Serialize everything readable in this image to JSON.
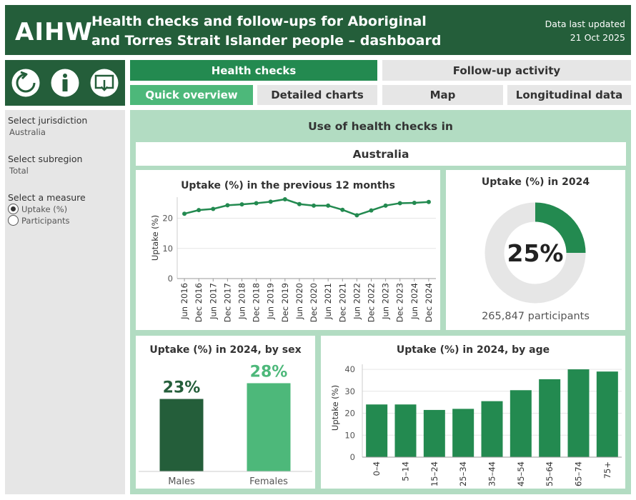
{
  "header": {
    "logo": "AIHW",
    "title_line1": "Health checks and follow-ups for Aboriginal",
    "title_line2": "and Torres Strait Islander people – dashboard",
    "updated_label": "Data last updated",
    "updated_date": "21 Oct 2025"
  },
  "toolbar": {
    "icons": [
      "reset-icon",
      "info-icon",
      "download-icon"
    ]
  },
  "nav": {
    "tabs": [
      "Health checks",
      "Follow-up activity"
    ],
    "subtabs": [
      "Quick overview",
      "Detailed charts",
      "Map",
      "Longitudinal data"
    ],
    "active_tab": "Health checks",
    "active_subtab": "Quick overview"
  },
  "sidebar": {
    "jurisdiction_label": "Select jurisdiction",
    "jurisdiction_value": "Australia",
    "subregion_label": "Select subregion",
    "subregion_value": "Total",
    "measure_label": "Select a measure",
    "measure_options": [
      "Uptake (%)",
      "Participants"
    ],
    "measure_selected": "Uptake (%)"
  },
  "main": {
    "title": "Use of health checks in",
    "jurisdiction": "Australia"
  },
  "colors": {
    "dark_green": "#245e3a",
    "green": "#238a50",
    "light_green": "#4db87a",
    "panel_bg": "#b2dcc2",
    "grey": "#e6e6e6"
  },
  "chart_data": [
    {
      "type": "line",
      "title": "Uptake (%) in the previous 12 months",
      "ylabel": "Uptake (%)",
      "xlabel": "",
      "x": [
        "Jun 2016",
        "Dec 2016",
        "Jun 2017",
        "Dec 2017",
        "Jun 2018",
        "Dec 2018",
        "Jun 2019",
        "Dec 2019",
        "Jun 2020",
        "Dec 2020",
        "Jun 2021",
        "Dec 2021",
        "Jun 2022",
        "Dec 2022",
        "Jun 2023",
        "Dec 2023",
        "Jun 2024",
        "Dec 2024"
      ],
      "values": [
        21.5,
        22.7,
        23.1,
        24.3,
        24.6,
        25.0,
        25.5,
        26.3,
        24.7,
        24.2,
        24.2,
        22.8,
        21.0,
        22.6,
        24.2,
        25.0,
        25.1,
        25.4
      ],
      "ylim": [
        0,
        27
      ],
      "yticks": [
        0,
        10,
        20
      ],
      "grid": true
    },
    {
      "type": "pie",
      "title": "Uptake (%) in 2024",
      "value": 25,
      "center_label": "25%",
      "footer": "265,847 participants"
    },
    {
      "type": "bar",
      "title": "Uptake (%) in 2024, by sex",
      "categories": [
        "Males",
        "Females"
      ],
      "values": [
        23,
        28
      ],
      "data_labels": [
        "23%",
        "28%"
      ],
      "colors": [
        "#245e3a",
        "#4db87a"
      ],
      "ylim": [
        0,
        34
      ]
    },
    {
      "type": "bar",
      "title": "Uptake (%) in 2024, by age",
      "ylabel": "Uptake (%)",
      "categories": [
        "0–4",
        "5–14",
        "15–24",
        "25–34",
        "35–44",
        "45–54",
        "55–64",
        "65–74",
        "75+"
      ],
      "values": [
        24.0,
        24.0,
        21.5,
        22.0,
        25.5,
        30.5,
        35.5,
        40.0,
        39.0
      ],
      "ylim": [
        0,
        41
      ],
      "yticks": [
        0,
        10,
        20,
        30,
        40
      ],
      "grid": true
    }
  ]
}
